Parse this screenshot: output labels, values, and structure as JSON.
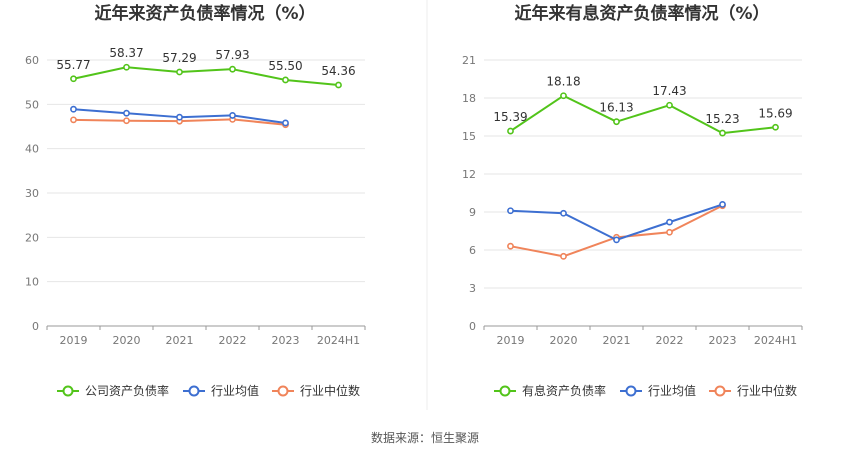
{
  "chart_data": [
    {
      "type": "line",
      "title": "近年来资产负债率情况（%）",
      "categories": [
        "2019",
        "2020",
        "2021",
        "2022",
        "2023",
        "2024H1"
      ],
      "ylim": [
        0,
        60
      ],
      "yticks": [
        0,
        10,
        20,
        30,
        40,
        50,
        60
      ],
      "grid": true,
      "legend_position": "bottom",
      "series": [
        {
          "name": "公司资产负债率",
          "color": "#52c41a",
          "values": [
            55.77,
            58.37,
            57.29,
            57.93,
            55.5,
            54.36
          ],
          "labels": [
            "55.77",
            "58.37",
            "57.29",
            "57.93",
            "55.50",
            "54.36"
          ]
        },
        {
          "name": "行业均值",
          "color": "#3d6fd1",
          "values": [
            48.9,
            48.0,
            47.1,
            47.5,
            45.8,
            null
          ]
        },
        {
          "name": "行业中位数",
          "color": "#f0845a",
          "values": [
            46.5,
            46.3,
            46.2,
            46.6,
            45.4,
            null
          ]
        }
      ]
    },
    {
      "type": "line",
      "title": "近年来有息资产负债率情况（%）",
      "categories": [
        "2019",
        "2020",
        "2021",
        "2022",
        "2023",
        "2024H1"
      ],
      "ylim": [
        0,
        21
      ],
      "yticks": [
        0,
        3,
        6,
        9,
        12,
        15,
        18,
        21
      ],
      "grid": true,
      "legend_position": "bottom",
      "series": [
        {
          "name": "有息资产负债率",
          "color": "#52c41a",
          "values": [
            15.39,
            18.18,
            16.13,
            17.43,
            15.23,
            15.69
          ],
          "labels": [
            "15.39",
            "18.18",
            "16.13",
            "17.43",
            "15.23",
            "15.69"
          ]
        },
        {
          "name": "行业均值",
          "color": "#3d6fd1",
          "values": [
            9.1,
            8.9,
            6.8,
            8.2,
            9.6,
            null
          ]
        },
        {
          "name": "行业中位数",
          "color": "#f0845a",
          "values": [
            6.3,
            5.5,
            7.0,
            7.4,
            9.5,
            null
          ]
        }
      ]
    }
  ],
  "footer": {
    "source": "数据来源：恒生聚源"
  }
}
